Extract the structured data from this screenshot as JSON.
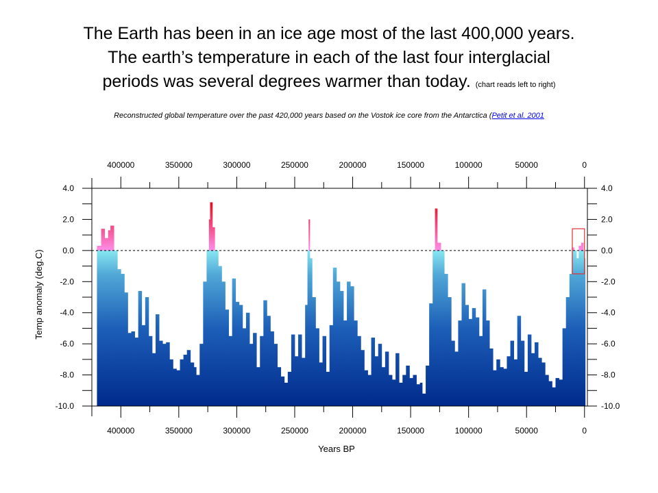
{
  "title": {
    "line1": "The Earth has been in an ice age most of the last 400,000 years.",
    "line2": "The earth’s temperature in each of the last four interglacial",
    "line3": "periods was several degrees warmer than today.",
    "note": "(chart reads left to right)"
  },
  "subtitle": {
    "text": "Reconstructed global temperature over the past 420,000  years based on the Vostok ice core from the Antarctica (",
    "link": "Petit et al. 2001"
  },
  "colors": {
    "deep": "#002a8c",
    "mid": "#3f8fd0",
    "zero_below": "#86e6f0",
    "zero_above": "#ff8ce8",
    "peak": "#e00010",
    "highlight_box": "#e03030"
  },
  "chart_data": {
    "type": "area",
    "title": "",
    "xlabel": "Years BP",
    "ylabel": "Temp anomaly (deg.C)",
    "xlim": [
      425000,
      -2500
    ],
    "ylim": [
      -10,
      4
    ],
    "x_ticks": [
      400000,
      350000,
      300000,
      250000,
      200000,
      150000,
      100000,
      50000,
      0
    ],
    "x_tick_labels": [
      "400000",
      "350000",
      "300000",
      "250000",
      "200000",
      "150000",
      "100000",
      "50000",
      "0"
    ],
    "y_ticks": [
      4,
      2,
      0,
      -2,
      -4,
      -6,
      -8,
      -10
    ],
    "y_tick_labels": [
      "4.0",
      "2.0",
      "0.0",
      "-2.0",
      "-4.0",
      "-6.0",
      "-8.0",
      "-10.0"
    ],
    "reference_line": {
      "y": 0,
      "style": "dashed"
    },
    "highlight_box": {
      "x": [
        10500,
        0
      ],
      "y": [
        1.4,
        -1.5
      ]
    },
    "x": [
      420000,
      417000,
      414000,
      411000,
      409000,
      406000,
      403000,
      400000,
      397000,
      394000,
      391000,
      388000,
      385000,
      382000,
      379000,
      376000,
      373000,
      370000,
      367000,
      364000,
      361000,
      358000,
      355000,
      352000,
      349000,
      346000,
      343000,
      340000,
      337000,
      335000,
      332000,
      329000,
      326000,
      324000,
      323000,
      321000,
      319000,
      316000,
      313000,
      310000,
      307000,
      304000,
      301000,
      298000,
      295000,
      292000,
      289000,
      286000,
      283000,
      280000,
      277000,
      274000,
      271000,
      268000,
      265000,
      262000,
      259000,
      256000,
      253000,
      250000,
      247000,
      244000,
      241000,
      239000,
      238000,
      237000,
      235000,
      232000,
      229000,
      226000,
      223000,
      220000,
      217000,
      214000,
      211000,
      208000,
      205000,
      202000,
      199000,
      196000,
      193000,
      190000,
      187000,
      184000,
      181000,
      178000,
      175000,
      172000,
      169000,
      166000,
      163000,
      160000,
      157000,
      154000,
      151000,
      148000,
      145000,
      142000,
      140000,
      137000,
      134000,
      131000,
      129000,
      127000,
      124000,
      121000,
      118000,
      115000,
      112000,
      109000,
      106000,
      103000,
      100000,
      97000,
      94000,
      91000,
      88000,
      85000,
      82000,
      79000,
      76000,
      73000,
      70000,
      67000,
      64000,
      61000,
      58000,
      55000,
      52000,
      49000,
      46000,
      43000,
      40000,
      37000,
      34000,
      31000,
      28000,
      25000,
      22000,
      19000,
      16000,
      13000,
      11000,
      9000,
      7000,
      5000,
      3000,
      1000,
      0
    ],
    "y": [
      0.3,
      1.4,
      0.8,
      1.3,
      1.6,
      0.0,
      -1.2,
      -1.5,
      -2.7,
      -5.3,
      -5.2,
      -5.6,
      -2.6,
      -4.8,
      -3.0,
      -5.5,
      -6.6,
      -4.1,
      -5.8,
      -6.0,
      -5.9,
      -7.0,
      -7.6,
      -7.7,
      -7.0,
      -6.7,
      -6.4,
      -7.2,
      -7.5,
      -8.0,
      -6.0,
      -2.0,
      0.0,
      2.0,
      3.1,
      1.5,
      0.0,
      -1.0,
      -2.0,
      -3.8,
      -5.5,
      -1.8,
      -3.3,
      -3.5,
      -5.0,
      -4.0,
      -6.0,
      -5.3,
      -7.5,
      -5.5,
      -3.2,
      -4.2,
      -5.2,
      -6.0,
      -7.5,
      -8.1,
      -8.5,
      -7.8,
      -5.4,
      -6.8,
      -5.4,
      -6.9,
      -3.5,
      0.0,
      2.0,
      -0.5,
      -3.0,
      -5.0,
      -7.2,
      -5.5,
      -7.8,
      -4.8,
      -1.1,
      -2.0,
      -2.6,
      -4.5,
      -2.0,
      -2.3,
      -4.5,
      -5.5,
      -6.4,
      -7.7,
      -8.0,
      -5.6,
      -6.8,
      -6.0,
      -7.5,
      -6.5,
      -8.0,
      -8.3,
      -6.6,
      -8.5,
      -8.0,
      -7.4,
      -8.2,
      -8.0,
      -8.6,
      -8.5,
      -9.2,
      -7.4,
      -3.4,
      0.0,
      2.7,
      0.5,
      0.0,
      -1.5,
      -3.0,
      -5.8,
      -6.5,
      -4.5,
      -2.1,
      -3.5,
      -4.4,
      -3.7,
      -4.3,
      -5.5,
      -2.5,
      -4.5,
      -6.3,
      -7.7,
      -7.0,
      -7.5,
      -7.6,
      -6.8,
      -5.8,
      -7.0,
      -4.2,
      -5.8,
      -7.8,
      -5.4,
      -6.6,
      -5.9,
      -6.9,
      -7.2,
      -8.0,
      -8.4,
      -8.8,
      -8.2,
      -8.3,
      -5.0,
      -3.0,
      -1.5,
      0.2,
      0.0,
      -0.5,
      0.3,
      0.5,
      0.0,
      -0.5
    ]
  }
}
